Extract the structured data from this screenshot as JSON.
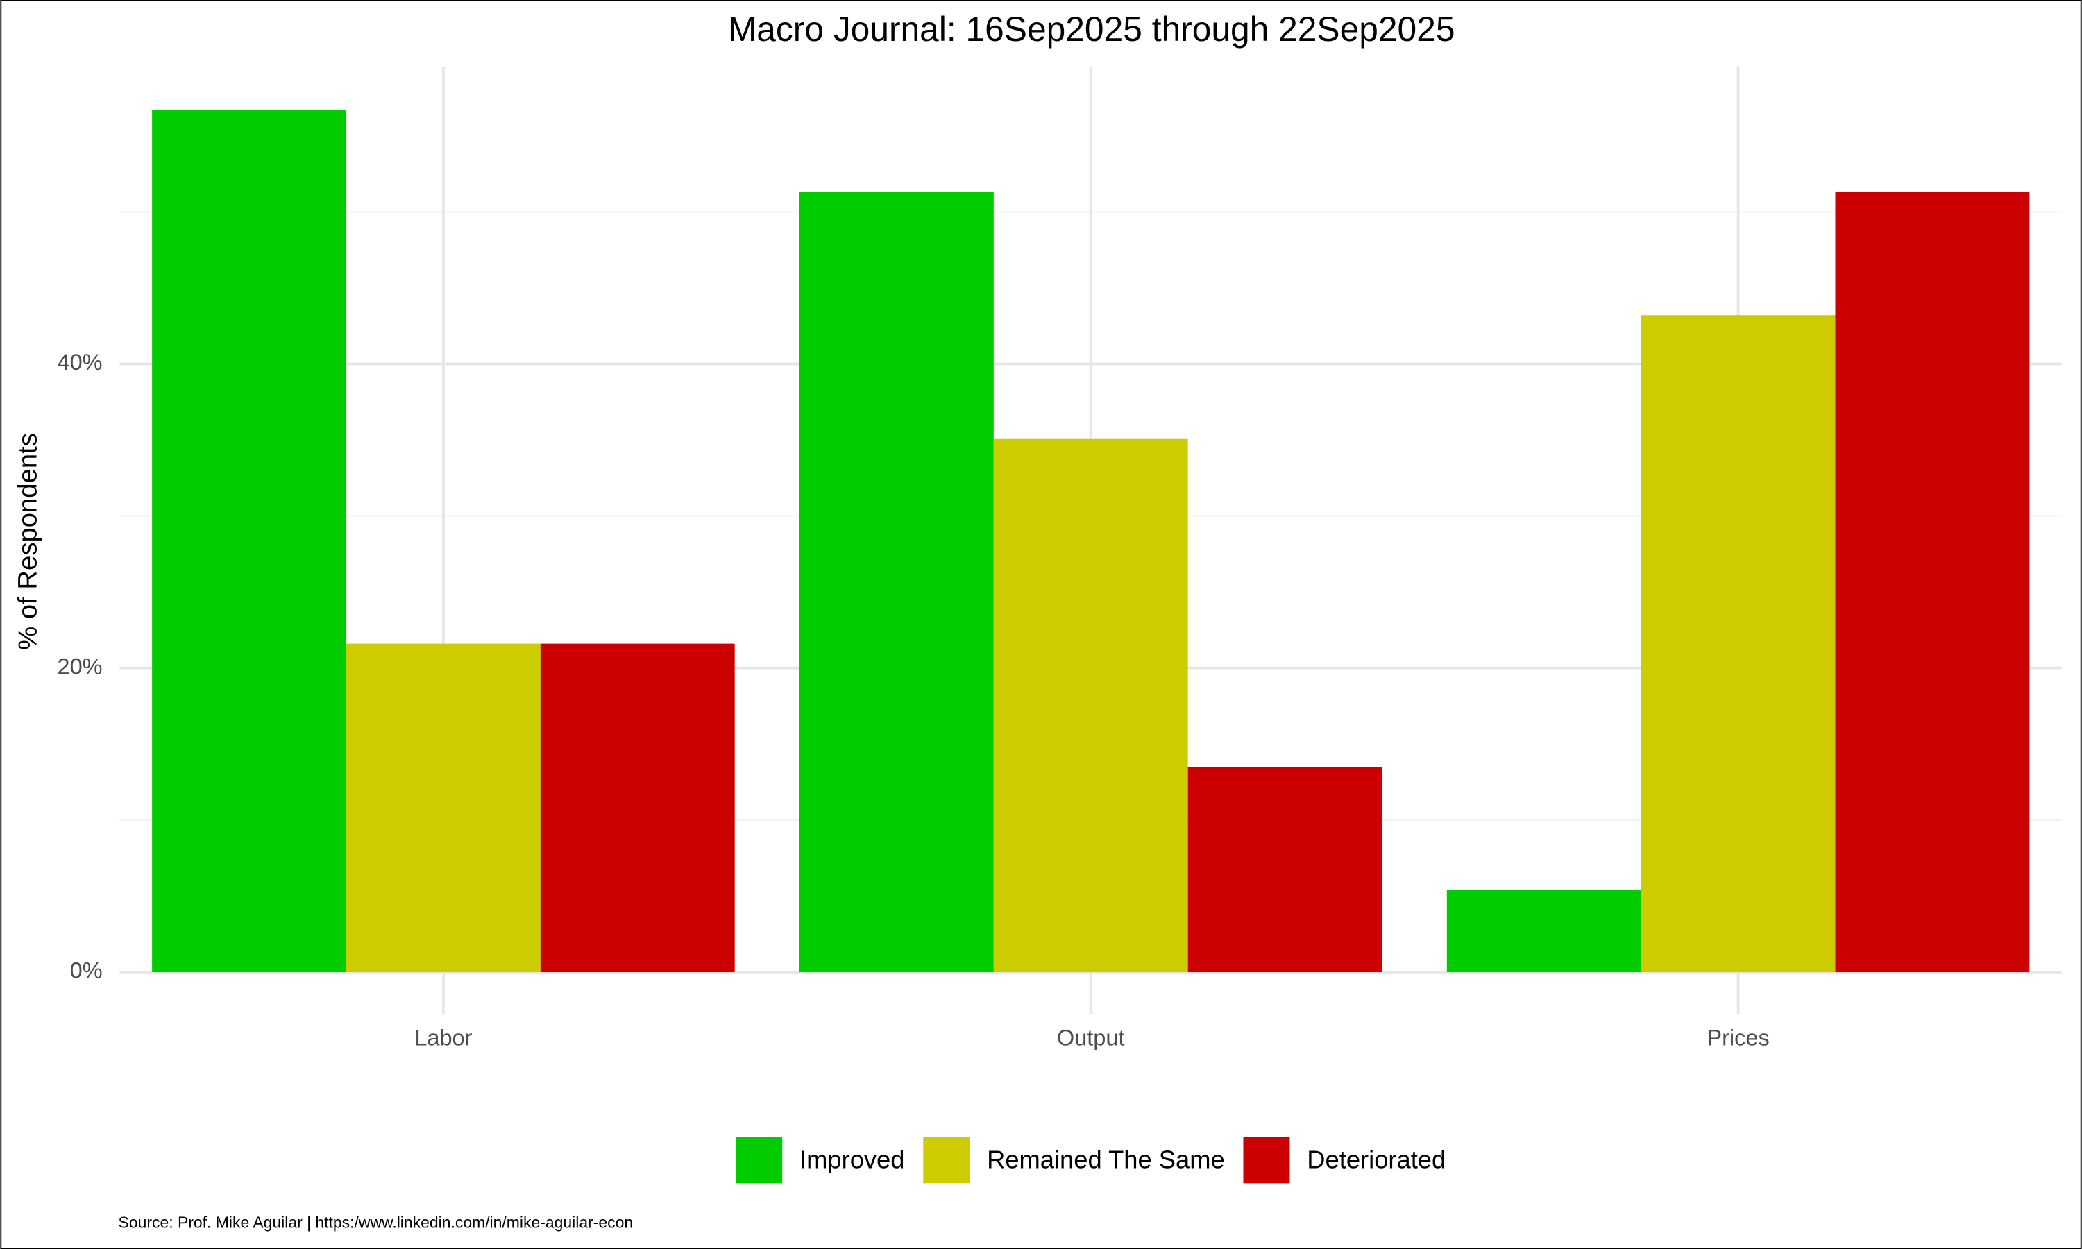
{
  "chart_data": {
    "type": "bar",
    "title": "Macro Journal: 16Sep2025 through 22Sep2025",
    "y_label": "% of Respondents",
    "source": "Source: Prof. Mike Aguilar  | https:/www.linkedin.com/in/mike-aguilar-econ",
    "categories": [
      "Labor",
      "Output",
      "Prices"
    ],
    "series": [
      {
        "name": "Improved",
        "color": "#00cc00",
        "values": [
          56.7,
          51.3,
          5.4
        ]
      },
      {
        "name": "Remained The Same",
        "color": "#cccc00",
        "values": [
          21.6,
          35.1,
          43.2
        ]
      },
      {
        "name": "Deteriorated",
        "color": "#cc0000",
        "values": [
          21.6,
          13.5,
          51.3
        ]
      }
    ],
    "ylim": [
      -2.8,
      59.5
    ],
    "yticks": [
      {
        "value": 0,
        "label": "0%"
      },
      {
        "value": 20,
        "label": "20%"
      },
      {
        "value": 40,
        "label": "40%"
      }
    ],
    "y_minor_ticks": [
      10,
      30,
      50
    ],
    "grid": true,
    "legend_position": "bottom"
  }
}
